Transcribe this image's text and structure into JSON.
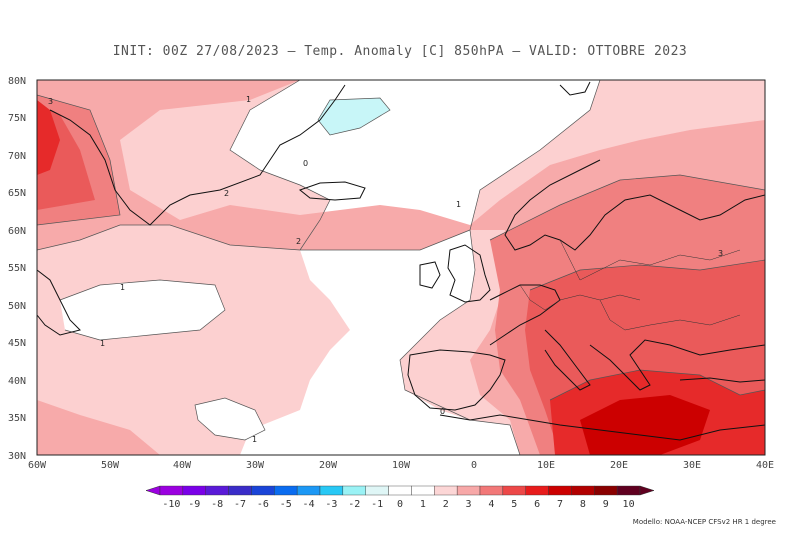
{
  "header": {
    "title": "INIT: 00Z 27/08/2023 – Temp. Anomaly [C] 850hPA – VALID: OTTOBRE 2023"
  },
  "axes": {
    "lat_labels": [
      "80N",
      "75N",
      "70N",
      "65N",
      "60N",
      "55N",
      "50N",
      "45N",
      "40N",
      "35N",
      "30N"
    ],
    "lon_labels": [
      "60W",
      "50W",
      "40W",
      "30W",
      "20W",
      "10W",
      "0",
      "10E",
      "20E",
      "30E",
      "40E"
    ]
  },
  "contour_labels": [
    "3",
    "1",
    "0",
    "2",
    "2",
    "1",
    "1",
    "1",
    "0",
    "1",
    "3"
  ],
  "legend": {
    "ticks": [
      "-10",
      "-9",
      "-8",
      "-7",
      "-6",
      "-5",
      "-4",
      "-3",
      "-2",
      "-1",
      "0",
      "1",
      "2",
      "3",
      "4",
      "5",
      "6",
      "7",
      "8",
      "9",
      "10"
    ],
    "colors": [
      "#9b00e0",
      "#7a00e8",
      "#5a1ad8",
      "#3a2cc8",
      "#1a44d8",
      "#0a6cf0",
      "#1c98f5",
      "#28c8f5",
      "#9af2f5",
      "#dff6f6",
      "#ffffff",
      "#ffffff",
      "#fcd6d6",
      "#f7a8a8",
      "#f27878",
      "#ed4848",
      "#e81c1c",
      "#cc0000",
      "#b20000",
      "#8a0000",
      "#600020"
    ]
  },
  "credit": "Modello: NOAA-NCEP CFSv2 HR 1 degree"
}
